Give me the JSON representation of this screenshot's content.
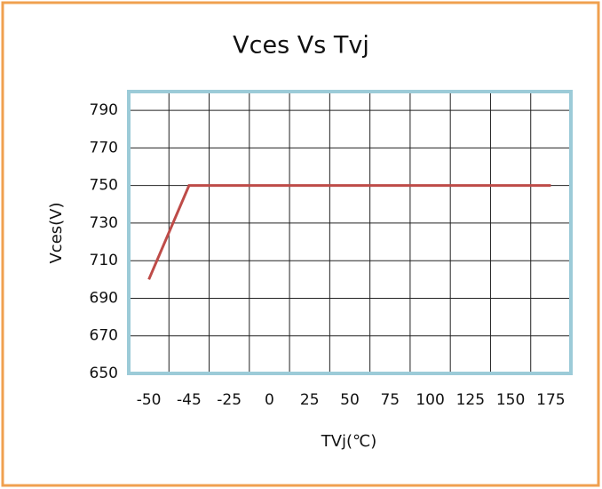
{
  "chart_data": {
    "type": "line",
    "title": "Vces Vs Tvj",
    "x_label": "TVj(℃)",
    "y_label": "Vces(V)",
    "categories": [
      "-50",
      "-45",
      "-25",
      "0",
      "25",
      "50",
      "75",
      "100",
      "125",
      "150",
      "175"
    ],
    "values": [
      700,
      750,
      750,
      750,
      750,
      750,
      750,
      750,
      750,
      750,
      750
    ],
    "color": "#be4b48",
    "ylim": [
      650,
      800
    ],
    "yticks": [
      650,
      670,
      690,
      710,
      730,
      750,
      770,
      790
    ],
    "grid": true
  }
}
